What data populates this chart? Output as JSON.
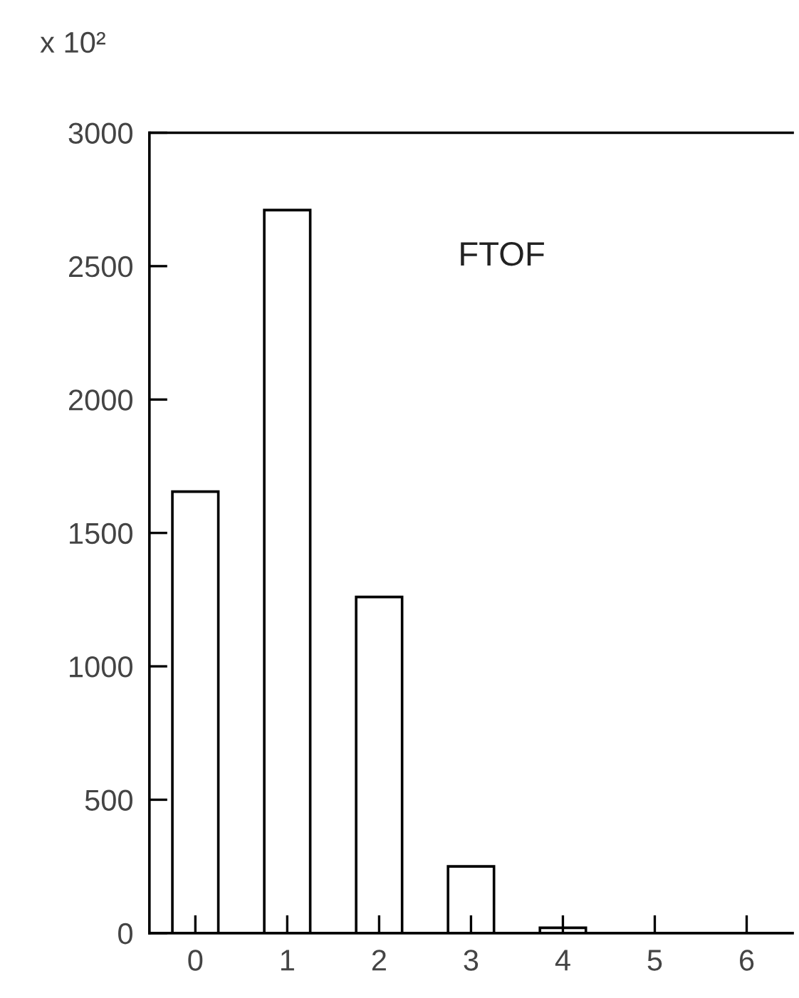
{
  "chart_data": {
    "type": "bar",
    "x": [
      0,
      1,
      2,
      3,
      4
    ],
    "values": [
      1655,
      2710,
      1260,
      250,
      20
    ],
    "color": "#ffffff",
    "xlim": [
      -0.5,
      6.5
    ],
    "xticks": [
      0,
      1,
      2,
      3,
      4,
      5,
      6
    ],
    "ylim": [
      0,
      3000
    ],
    "yticks": [
      0,
      500,
      1000,
      1500,
      2000,
      2500,
      3000
    ],
    "grid": false,
    "legend": false,
    "annotations": [
      "x 10²",
      "FTOF"
    ]
  }
}
